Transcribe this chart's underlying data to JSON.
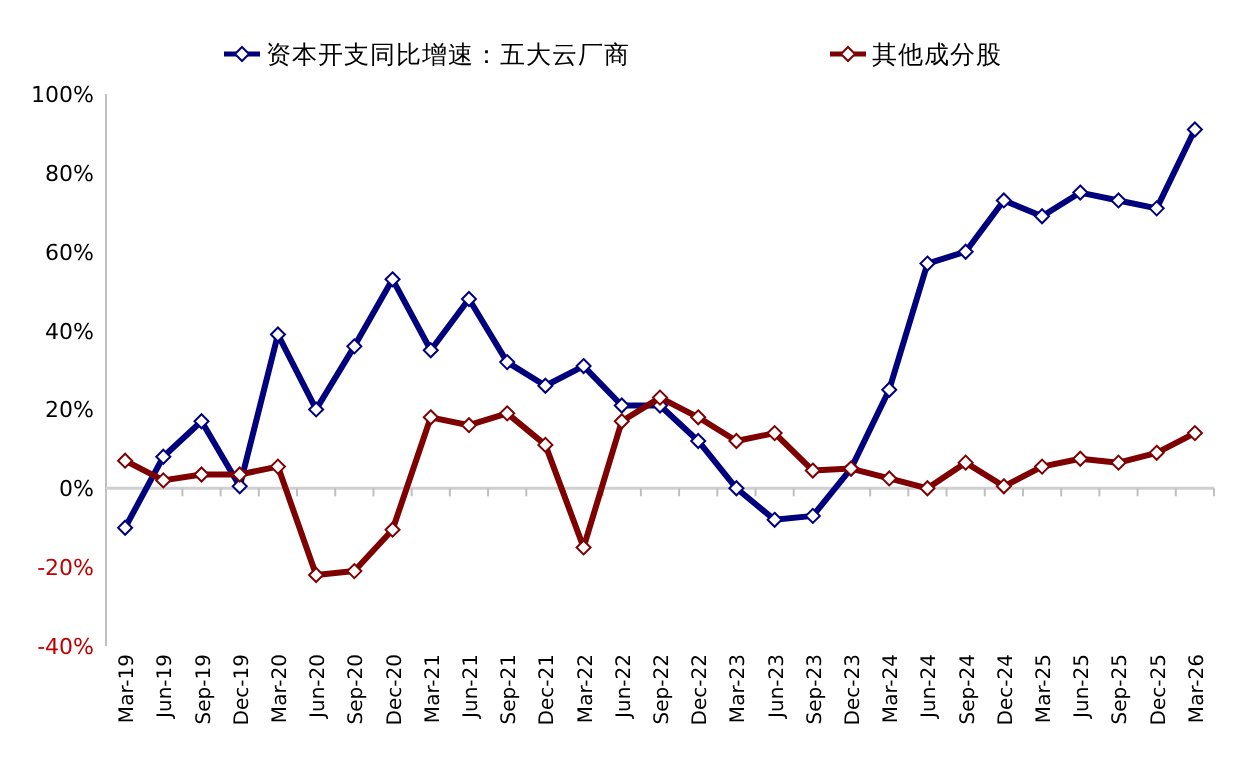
{
  "chart_data": {
    "type": "line",
    "categories": [
      "Mar-19",
      "Jun-19",
      "Sep-19",
      "Dec-19",
      "Mar-20",
      "Jun-20",
      "Sep-20",
      "Dec-20",
      "Mar-21",
      "Jun-21",
      "Sep-21",
      "Dec-21",
      "Mar-22",
      "Jun-22",
      "Sep-22",
      "Dec-22",
      "Mar-23",
      "Jun-23",
      "Sep-23",
      "Dec-23",
      "Mar-24",
      "Jun-24",
      "Sep-24",
      "Dec-24",
      "Mar-25",
      "Jun-25",
      "Sep-25",
      "Dec-25",
      "Mar-26"
    ],
    "series": [
      {
        "name": "资本开支同比增速：五大云厂商",
        "color": "#00007f",
        "values": [
          -10,
          8,
          17,
          0.5,
          39,
          20,
          36,
          53,
          35,
          48,
          32,
          26,
          31,
          21,
          21,
          12,
          0,
          -8,
          -7,
          5,
          25,
          57,
          60,
          73,
          69,
          75,
          73,
          71,
          91
        ]
      },
      {
        "name": "其他成分股",
        "color": "#7f0000",
        "values": [
          7,
          2,
          3.5,
          3.5,
          5.5,
          -22,
          -21,
          -10.5,
          18,
          16,
          19,
          11,
          -15,
          17,
          23,
          18,
          12,
          14,
          4.5,
          5,
          2.5,
          0,
          6.5,
          0.5,
          5.5,
          7.5,
          6.5,
          9,
          14
        ]
      }
    ],
    "ylim": [
      -40,
      100
    ],
    "yticks": [
      {
        "value": -40,
        "label": "-40%"
      },
      {
        "value": -20,
        "label": "-20%"
      },
      {
        "value": 0,
        "label": "0%"
      },
      {
        "value": 20,
        "label": "20%"
      },
      {
        "value": 40,
        "label": "40%"
      },
      {
        "value": 60,
        "label": "60%"
      },
      {
        "value": 80,
        "label": "80%"
      },
      {
        "value": 100,
        "label": "100%"
      }
    ],
    "legend": "top",
    "marker": "diamond",
    "line_style": "solid"
  }
}
